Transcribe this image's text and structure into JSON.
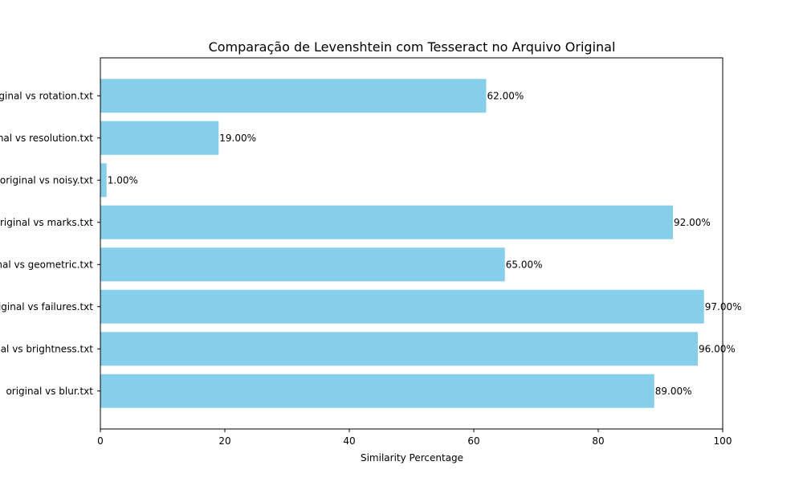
{
  "chart_data": {
    "type": "bar",
    "orientation": "horizontal",
    "title": "Comparação de Levenshtein com Tesseract no Arquivo Original",
    "xlabel": "Similarity Percentage",
    "ylabel": "",
    "xlim": [
      0,
      100
    ],
    "x_ticks": [
      0,
      20,
      40,
      60,
      80,
      100
    ],
    "grid": false,
    "legend": "none",
    "bar_color": "#87ceeb",
    "categories": [
      "original vs blur.txt",
      "original vs brightness.txt",
      "original vs failures.txt",
      "original vs geometric.txt",
      "original vs marks.txt",
      "original vs noisy.txt",
      "original vs resolution.txt",
      "original vs rotation.txt"
    ],
    "values": [
      89,
      96,
      97,
      65,
      92,
      1,
      19,
      62
    ],
    "data_labels": [
      "89.00%",
      "96.00%",
      "97.00%",
      "65.00%",
      "92.00%",
      "1.00%",
      "19.00%",
      "62.00%"
    ]
  }
}
